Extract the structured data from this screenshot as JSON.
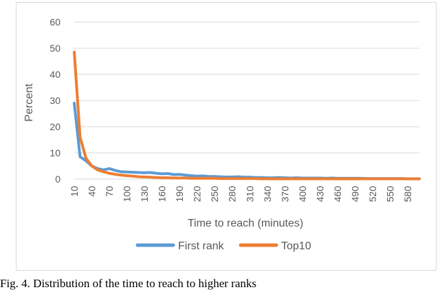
{
  "chart_data": {
    "type": "line",
    "xlabel": "Time to reach (minutes)",
    "ylabel": "Percent",
    "ylim": [
      0,
      60
    ],
    "yticks": [
      0,
      10,
      20,
      30,
      40,
      50,
      60
    ],
    "xlim": [
      10,
      600
    ],
    "xtick_labels": [
      "10",
      "40",
      "70",
      "100",
      "130",
      "160",
      "190",
      "220",
      "250",
      "280",
      "310",
      "340",
      "370",
      "400",
      "430",
      "460",
      "490",
      "520",
      "550",
      "580"
    ],
    "grid": "horizontal",
    "legend_position": "bottom",
    "x": [
      10,
      20,
      30,
      40,
      50,
      60,
      70,
      80,
      90,
      100,
      110,
      120,
      130,
      140,
      150,
      160,
      170,
      180,
      190,
      200,
      210,
      220,
      230,
      240,
      250,
      260,
      270,
      280,
      290,
      300,
      310,
      320,
      330,
      340,
      350,
      360,
      370,
      380,
      390,
      400,
      410,
      420,
      430,
      440,
      450,
      460,
      470,
      480,
      490,
      500,
      510,
      520,
      530,
      540,
      550,
      560,
      570,
      580,
      590,
      600
    ],
    "series": [
      {
        "name": "First rank",
        "color": "#5b9bd5",
        "values": [
          29,
          8.5,
          7,
          5,
          4,
          3.5,
          4,
          3.3,
          2.8,
          2.7,
          2.6,
          2.5,
          2.4,
          2.5,
          2.2,
          2,
          2.1,
          1.7,
          1.8,
          1.5,
          1.3,
          1.1,
          1.2,
          1,
          1,
          0.9,
          0.8,
          0.8,
          0.9,
          0.7,
          0.7,
          0.6,
          0.6,
          0.5,
          0.5,
          0.6,
          0.5,
          0.4,
          0.5,
          0.4,
          0.4,
          0.4,
          0.4,
          0.3,
          0.4,
          0.3,
          0.3,
          0.3,
          0.3,
          0.3,
          0.2,
          0.2,
          0.2,
          0.2,
          0.2,
          0.2,
          0.2,
          0.1,
          0.1,
          0.1
        ]
      },
      {
        "name": "Top10",
        "color": "#ed7d31",
        "values": [
          48.5,
          16,
          8,
          5,
          3.5,
          2.8,
          2.2,
          1.8,
          1.5,
          1.3,
          1.1,
          0.9,
          0.8,
          0.7,
          0.6,
          0.5,
          0.5,
          0.4,
          0.4,
          0.4,
          0.3,
          0.3,
          0.3,
          0.3,
          0.3,
          0.2,
          0.2,
          0.2,
          0.2,
          0.2,
          0.2,
          0.2,
          0.1,
          0.1,
          0.1,
          0.1,
          0.1,
          0.1,
          0.1,
          0.1,
          0.1,
          0.1,
          0.1,
          0.1,
          0.1,
          0.1,
          0.1,
          0.1,
          0.1,
          0.1,
          0.1,
          0.1,
          0.1,
          0.1,
          0.1,
          0.1,
          0.1,
          0.1,
          0.1,
          0.1
        ]
      }
    ]
  },
  "caption": "Fig. 4.   Distribution of the time to reach to higher ranks"
}
